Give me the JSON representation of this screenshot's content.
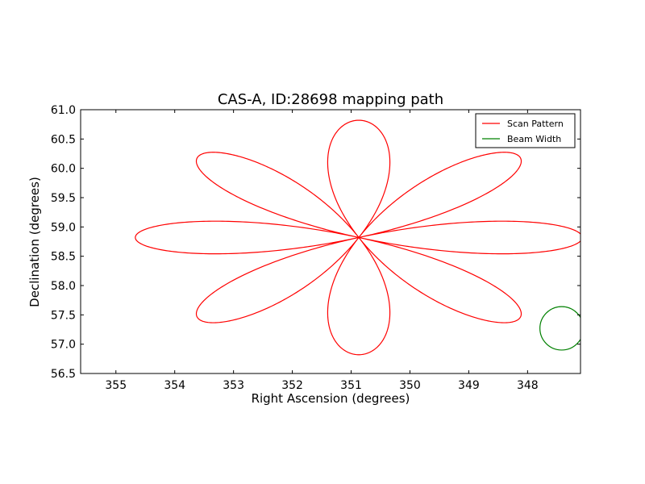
{
  "chart_data": {
    "type": "line",
    "title": "CAS-A, ID:28698 mapping path",
    "xlabel": "Right Ascension (degrees)",
    "ylabel": "Declination (degrees)",
    "xlim": [
      355.6,
      347.1
    ],
    "ylim": [
      56.5,
      61.0
    ],
    "x_reversed": true,
    "xticks": [
      355,
      354,
      353,
      352,
      351,
      350,
      349,
      348
    ],
    "xtick_labels": [
      "355",
      "354",
      "353",
      "352",
      "351",
      "350",
      "349",
      "348"
    ],
    "yticks": [
      56.5,
      57.0,
      57.5,
      58.0,
      58.5,
      59.0,
      59.5,
      60.0,
      60.5,
      61.0
    ],
    "ytick_labels": [
      "56.5",
      "57.0",
      "57.5",
      "58.0",
      "58.5",
      "59.0",
      "59.5",
      "60.0",
      "60.5",
      "61.0"
    ],
    "grid": false,
    "legend_position": "top-right",
    "series": [
      {
        "name": "Scan Pattern",
        "color": "#ff0000",
        "shape": "rose",
        "center": [
          350.87,
          58.82
        ],
        "petals": 8,
        "petal_max_dec_extent": 2.0,
        "petal_max_ra_extent": 3.8
      },
      {
        "name": "Beam Width",
        "color": "#008000",
        "shape": "circle",
        "center": [
          347.42,
          57.27
        ],
        "radius_ra": 0.37,
        "radius_dec": 0.37
      }
    ]
  }
}
